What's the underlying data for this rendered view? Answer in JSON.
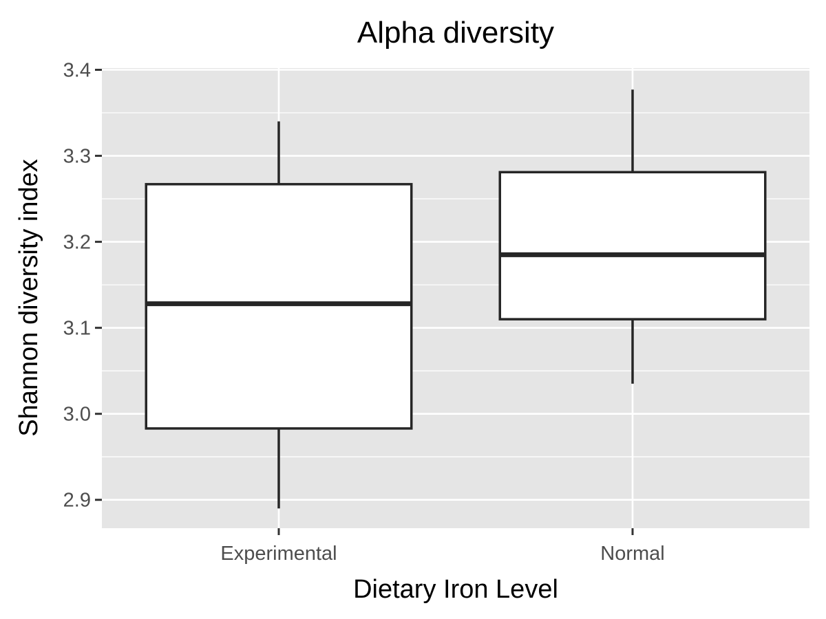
{
  "chart_data": {
    "type": "boxplot",
    "title": "Alpha diversity",
    "xlabel": "Dietary Iron Level",
    "ylabel": "Shannon diversity index",
    "categories": [
      "Experimental",
      "Normal"
    ],
    "boxes": [
      {
        "category": "Experimental",
        "whisker_low": 2.89,
        "q1": 2.983,
        "median": 3.128,
        "q3": 3.267,
        "whisker_high": 3.34
      },
      {
        "category": "Normal",
        "whisker_low": 3.035,
        "q1": 3.11,
        "median": 3.185,
        "q3": 3.281,
        "whisker_high": 3.377
      }
    ],
    "y_ticks": [
      2.9,
      3.0,
      3.1,
      3.2,
      3.3,
      3.4
    ],
    "y_tick_labels": [
      "2.9",
      "3.0",
      "3.1",
      "3.2",
      "3.3",
      "3.4"
    ],
    "ylim": [
      2.867,
      3.402
    ],
    "grid": true,
    "colors": {
      "panel_background": "#e5e5e5",
      "grid": "#ffffff",
      "box_fill": "#ffffff",
      "box_stroke": "#262626",
      "tick": "#333333"
    }
  }
}
